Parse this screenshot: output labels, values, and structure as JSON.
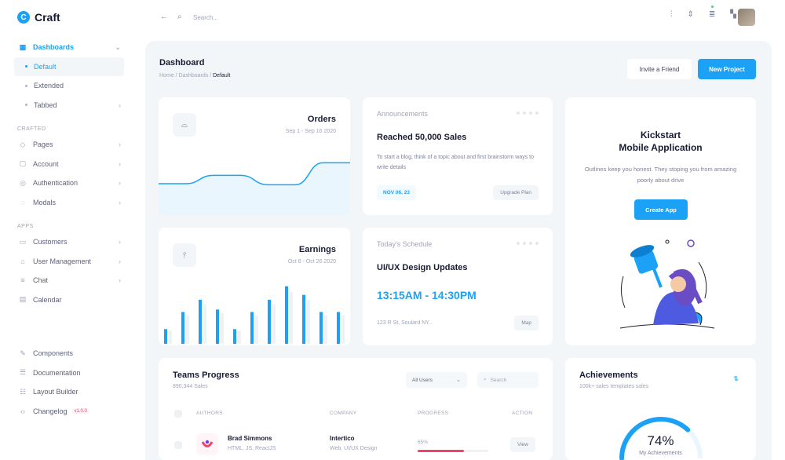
{
  "app": {
    "name": "Craft",
    "logo_letter": "C"
  },
  "sidebar": {
    "dashboards": {
      "label": "Dashboards",
      "items": [
        {
          "label": "Default",
          "active": true
        },
        {
          "label": "Extended"
        },
        {
          "label": "Tabbed"
        }
      ]
    },
    "crafted_label": "CRAFTED",
    "crafted": [
      {
        "label": "Pages",
        "icon": "pages-icon"
      },
      {
        "label": "Account",
        "icon": "account-icon"
      },
      {
        "label": "Authentication",
        "icon": "authentication-icon"
      },
      {
        "label": "Modals",
        "icon": "modals-icon"
      }
    ],
    "apps_label": "APPS",
    "apps": [
      {
        "label": "Customers",
        "icon": "customers-icon"
      },
      {
        "label": "User Management",
        "icon": "user-management-icon"
      },
      {
        "label": "Chat",
        "icon": "chat-icon"
      },
      {
        "label": "Calendar",
        "icon": "calendar-icon"
      }
    ],
    "bottom": [
      {
        "label": "Components",
        "icon": "components-icon"
      },
      {
        "label": "Documentation",
        "icon": "documentation-icon"
      },
      {
        "label": "Layout Builder",
        "icon": "layout-builder-icon"
      },
      {
        "label": "Changelog",
        "icon": "changelog-icon",
        "badge": "v1.0.0"
      }
    ]
  },
  "topbar": {
    "search_placeholder": "Search..."
  },
  "header": {
    "title": "Dashboard",
    "breadcrumb": [
      "Home",
      "Dashboards",
      "Default"
    ],
    "invite_label": "Invite a Friend",
    "new_project_label": "New Project"
  },
  "orders": {
    "title": "Orders",
    "date_range": "Sep 1 - Sep 16 2020",
    "color": "#1ba2f6",
    "chart_data": {
      "type": "area",
      "values": [
        30,
        30,
        38,
        38,
        29,
        29,
        50,
        50
      ]
    }
  },
  "earnings": {
    "title": "Earnings",
    "date_range": "Oct 8 - Oct 26 2020",
    "color": "#1ba2f6",
    "chart_data": {
      "type": "bar",
      "values": [
        12,
        26,
        36,
        28,
        12,
        26,
        36,
        47,
        40,
        26,
        26
      ]
    }
  },
  "announcements": {
    "heading": "Announcements",
    "title": "Reached 50,000 Sales",
    "text": "To start a blog, think of a topic about and first brainstorm ways to write details",
    "date": "NOV 06, 23",
    "button": "Upgrade Plan"
  },
  "schedule": {
    "heading": "Today's Schedule",
    "title": "UI/UX Design Updates",
    "time": "13:15AM - 14:30PM",
    "address": "123 R St, Soulard NY..",
    "button": "Map"
  },
  "promo": {
    "title_line1": "Kickstart",
    "title_line2": "Mobile Application",
    "text": "Outlines keep you honest. They stoping you from amazing poorly about drive",
    "button": "Create App"
  },
  "teams": {
    "title": "Teams Progress",
    "subtitle": "890,344 Sales",
    "filter": "All Users",
    "search_placeholder": "Search",
    "columns": [
      "AUTHORS",
      "COMPANY",
      "PROGRESS",
      "ACTION"
    ],
    "rows": [
      {
        "name": "Brad Simmons",
        "skills": "HTML, JS, ReactJS",
        "company": "Intertico",
        "company_sub": "Web, UI/UX Design",
        "progress": "65%",
        "progress_value": 0.65,
        "action": "View"
      }
    ]
  },
  "achievements": {
    "title": "Achievements",
    "subtitle": "100k+ sales templates sales",
    "value": "74%",
    "value_fraction": 0.74,
    "label": "My Achievements"
  }
}
